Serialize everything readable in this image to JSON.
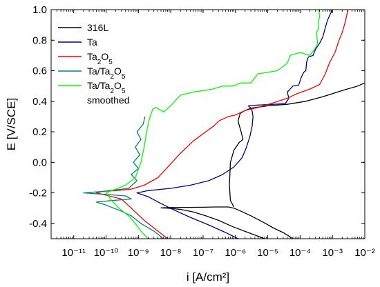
{
  "chart_data": {
    "type": "line",
    "xlabel": "i [A/cm²]",
    "ylabel": "E [V/SCE]",
    "xscale": "log",
    "xlim": [
      2e-12,
      0.01
    ],
    "ylim": [
      -0.5,
      1.0
    ],
    "x_ticks": [
      {
        "value": 1e-11,
        "label": "10⁻¹¹"
      },
      {
        "value": 1e-10,
        "label": "10⁻¹⁰"
      },
      {
        "value": 1e-09,
        "label": "10⁻⁹"
      },
      {
        "value": 1e-08,
        "label": "10⁻⁸"
      },
      {
        "value": 1e-07,
        "label": "10⁻⁷"
      },
      {
        "value": 1e-06,
        "label": "10⁻⁶"
      },
      {
        "value": 1e-05,
        "label": "10⁻⁵"
      },
      {
        "value": 0.0001,
        "label": "10⁻⁴"
      },
      {
        "value": 0.001,
        "label": "10⁻³"
      },
      {
        "value": 0.01,
        "label": "10⁻²"
      }
    ],
    "y_ticks": [
      {
        "value": -0.4,
        "label": "-0.4"
      },
      {
        "value": -0.2,
        "label": "-0.2"
      },
      {
        "value": 0.0,
        "label": "0.0"
      },
      {
        "value": 0.2,
        "label": "0.2"
      },
      {
        "value": 0.4,
        "label": "0.4"
      },
      {
        "value": 0.6,
        "label": "0.6"
      },
      {
        "value": 0.8,
        "label": "0.8"
      },
      {
        "value": 1.0,
        "label": "1.0"
      }
    ],
    "grid": false,
    "legend_position": "top-left",
    "series": [
      {
        "name": "316L",
        "legend_parts": [
          {
            "t": "316L"
          }
        ],
        "color": "#000000",
        "points": [
          [
            8e-06,
            -0.5
          ],
          [
            2.5e-06,
            -0.46
          ],
          [
            8e-07,
            -0.42
          ],
          [
            3e-07,
            -0.38
          ],
          [
            1.2e-07,
            -0.35
          ],
          [
            5e-08,
            -0.325
          ],
          [
            2e-08,
            -0.308
          ],
          [
            8e-09,
            -0.3
          ],
          [
            5e-09,
            -0.298
          ],
          [
            1e-08,
            -0.296
          ],
          [
            3e-08,
            -0.295
          ],
          [
            1e-07,
            -0.294
          ],
          [
            2.5e-07,
            -0.292
          ],
          [
            6e-07,
            -0.292
          ],
          [
            9e-07,
            -0.3
          ],
          [
            1.5e-06,
            -0.32
          ],
          [
            3e-06,
            -0.35
          ],
          [
            7e-06,
            -0.39
          ],
          [
            1.5e-05,
            -0.43
          ],
          [
            3e-05,
            -0.46
          ],
          [
            6e-05,
            -0.5
          ],
          [
            null,
            null
          ],
          [
            9e-07,
            -0.292
          ],
          [
            7e-07,
            -0.25
          ],
          [
            6.5e-07,
            -0.15
          ],
          [
            7e-07,
            0.0
          ],
          [
            9e-07,
            0.08
          ],
          [
            1.3e-06,
            0.13
          ],
          [
            1.7e-06,
            0.15
          ],
          [
            1.5e-06,
            0.2
          ],
          [
            1.2e-06,
            0.27
          ],
          [
            1.4e-06,
            0.32
          ],
          [
            2e-06,
            0.34
          ],
          [
            3e-06,
            0.355
          ],
          [
            1e-05,
            0.37
          ],
          [
            4e-05,
            0.38
          ],
          [
            0.00015,
            0.4
          ],
          [
            0.0005,
            0.43
          ],
          [
            0.002,
            0.47
          ],
          [
            0.006,
            0.5
          ],
          [
            0.01,
            0.52
          ]
        ]
      },
      {
        "name": "Ta",
        "legend_parts": [
          {
            "t": "Ta"
          }
        ],
        "color": "#00008b",
        "points": [
          [
            1.2e-06,
            -0.5
          ],
          [
            5e-07,
            -0.46
          ],
          [
            1.5e-07,
            -0.41
          ],
          [
            4e-08,
            -0.36
          ],
          [
            1.2e-08,
            -0.31
          ],
          [
            5e-09,
            -0.27
          ],
          [
            2e-09,
            -0.225
          ],
          [
            9e-10,
            -0.2
          ],
          [
            2e-09,
            -0.185
          ],
          [
            1e-08,
            -0.17
          ],
          [
            4e-08,
            -0.15
          ],
          [
            1.5e-07,
            -0.12
          ],
          [
            4e-07,
            -0.08
          ],
          [
            9e-07,
            -0.03
          ],
          [
            1.6e-06,
            0.03
          ],
          [
            2.2e-06,
            0.1
          ],
          [
            2.8e-06,
            0.17
          ],
          [
            3.3e-06,
            0.24
          ],
          [
            3.5e-06,
            0.3
          ],
          [
            3.2e-06,
            0.35
          ],
          [
            2.5e-06,
            0.37
          ],
          [
            5e-06,
            0.375
          ],
          [
            1.5e-05,
            0.38
          ],
          [
            3.5e-05,
            0.385
          ],
          [
            4.5e-05,
            0.42
          ],
          [
            4e-05,
            0.46
          ],
          [
            6e-05,
            0.5
          ],
          [
            9e-05,
            0.505
          ],
          [
            0.00011,
            0.56
          ],
          [
            0.00013,
            0.59
          ],
          [
            0.00015,
            0.6
          ],
          [
            0.00016,
            0.66
          ],
          [
            0.00018,
            0.69
          ],
          [
            0.00025,
            0.7
          ],
          [
            0.0003,
            0.74
          ],
          [
            0.0004,
            0.78
          ],
          [
            0.0005,
            0.82
          ],
          [
            0.0006,
            0.88
          ],
          [
            0.0007,
            0.93
          ],
          [
            0.0009,
            0.98
          ],
          [
            0.001,
            1.0
          ]
        ]
      },
      {
        "name": "Ta₂O₅",
        "legend_parts": [
          {
            "t": "Ta"
          },
          {
            "t": "2",
            "sub": true
          },
          {
            "t": "O"
          },
          {
            "t": "5",
            "sub": true
          }
        ],
        "color": "#ff0000",
        "points": [
          [
            8e-09,
            -0.5
          ],
          [
            4e-09,
            -0.45
          ],
          [
            1.5e-09,
            -0.38
          ],
          [
            6e-10,
            -0.3
          ],
          [
            3e-10,
            -0.24
          ],
          [
            8e-11,
            -0.21
          ],
          [
            5e-11,
            -0.2
          ],
          [
            8e-11,
            -0.19
          ],
          [
            2e-10,
            -0.185
          ],
          [
            6e-10,
            -0.175
          ],
          [
            1.5e-09,
            -0.15
          ],
          [
            4e-09,
            -0.1
          ],
          [
            9e-09,
            -0.02
          ],
          [
            2e-08,
            0.06
          ],
          [
            5e-08,
            0.14
          ],
          [
            1.2e-07,
            0.2
          ],
          [
            2.2e-07,
            0.24
          ],
          [
            3e-07,
            0.27
          ],
          [
            6e-07,
            0.3
          ],
          [
            1e-06,
            0.31
          ],
          [
            2e-06,
            0.34
          ],
          [
            5e-06,
            0.36
          ],
          [
            1.5e-05,
            0.39
          ],
          [
            4e-05,
            0.42
          ],
          [
            8e-05,
            0.45
          ],
          [
            0.0002,
            0.48
          ],
          [
            0.0004,
            0.51
          ],
          [
            0.0006,
            0.58
          ],
          [
            0.0008,
            0.65
          ],
          [
            0.0012,
            0.72
          ],
          [
            0.0016,
            0.8
          ],
          [
            0.002,
            0.85
          ],
          [
            0.0025,
            0.92
          ],
          [
            0.003,
            1.0
          ]
        ]
      },
      {
        "name": "Ta/Ta₂O₅",
        "legend_parts": [
          {
            "t": "Ta/Ta"
          },
          {
            "t": "2",
            "sub": true
          },
          {
            "t": "O"
          },
          {
            "t": "5",
            "sub": true
          }
        ],
        "color": "#008080",
        "points": [
          [
            6e-09,
            -0.5
          ],
          [
            3e-09,
            -0.45
          ],
          [
            1.2e-09,
            -0.4
          ],
          [
            6e-10,
            -0.35
          ],
          [
            3e-10,
            -0.32
          ],
          [
            1e-10,
            -0.28
          ],
          [
            5e-11,
            -0.26
          ],
          [
            1.5e-10,
            -0.25
          ],
          [
            6e-10,
            -0.24
          ],
          [
            4e-10,
            -0.22
          ],
          [
            1e-10,
            -0.21
          ],
          [
            2e-11,
            -0.2
          ],
          [
            8e-11,
            -0.19
          ],
          [
            5e-10,
            -0.17
          ],
          [
            9e-10,
            -0.12
          ],
          [
            6e-10,
            -0.08
          ],
          [
            1e-09,
            -0.04
          ],
          [
            7e-10,
            0.0
          ],
          [
            1.1e-09,
            0.05
          ],
          [
            8e-10,
            0.1
          ],
          [
            1.2e-09,
            0.15
          ],
          [
            9e-10,
            0.2
          ],
          [
            1.4e-09,
            0.25
          ],
          [
            1.6e-09,
            0.3
          ]
        ]
      },
      {
        "name": "Ta/Ta₂O₅ smoothed",
        "legend_parts": [
          {
            "t": "Ta/Ta"
          },
          {
            "t": "2",
            "sub": true
          },
          {
            "t": "O"
          },
          {
            "t": "5",
            "sub": true
          }
        ],
        "legend_line2": "smoothed",
        "color": "#00ff00",
        "points": [
          [
            2e-09,
            -0.5
          ],
          [
            1.2e-09,
            -0.45
          ],
          [
            8e-10,
            -0.4
          ],
          [
            5e-10,
            -0.35
          ],
          [
            2.5e-10,
            -0.3
          ],
          [
            1.5e-10,
            -0.25
          ],
          [
            1e-10,
            -0.2
          ],
          [
            4e-10,
            -0.15
          ],
          [
            8e-10,
            -0.1
          ],
          [
            1.2e-09,
            0.0
          ],
          [
            1.5e-09,
            0.1
          ],
          [
            1.8e-09,
            0.2
          ],
          [
            2e-09,
            0.25
          ],
          [
            2.3e-09,
            0.3
          ],
          [
            2.8e-09,
            0.35
          ],
          [
            3.5e-09,
            0.36
          ],
          [
            6e-09,
            0.33
          ],
          [
            1e-08,
            0.37
          ],
          [
            2e-08,
            0.44
          ],
          [
            5e-08,
            0.46
          ],
          [
            1e-07,
            0.47
          ],
          [
            2e-07,
            0.48
          ],
          [
            4e-07,
            0.5
          ],
          [
            8e-07,
            0.5
          ],
          [
            1.5e-06,
            0.52
          ],
          [
            3e-06,
            0.52
          ],
          [
            5e-06,
            0.58
          ],
          [
            2e-05,
            0.6
          ],
          [
            4e-05,
            0.65
          ],
          [
            5e-05,
            0.7
          ],
          [
            0.0001,
            0.72
          ],
          [
            0.0002,
            0.7
          ],
          [
            0.0003,
            0.75
          ],
          [
            0.00035,
            0.78
          ],
          [
            0.00032,
            0.85
          ],
          [
            0.00038,
            0.88
          ],
          [
            0.00036,
            0.92
          ],
          [
            0.0004,
            0.95
          ],
          [
            0.00038,
            1.0
          ]
        ]
      }
    ]
  }
}
